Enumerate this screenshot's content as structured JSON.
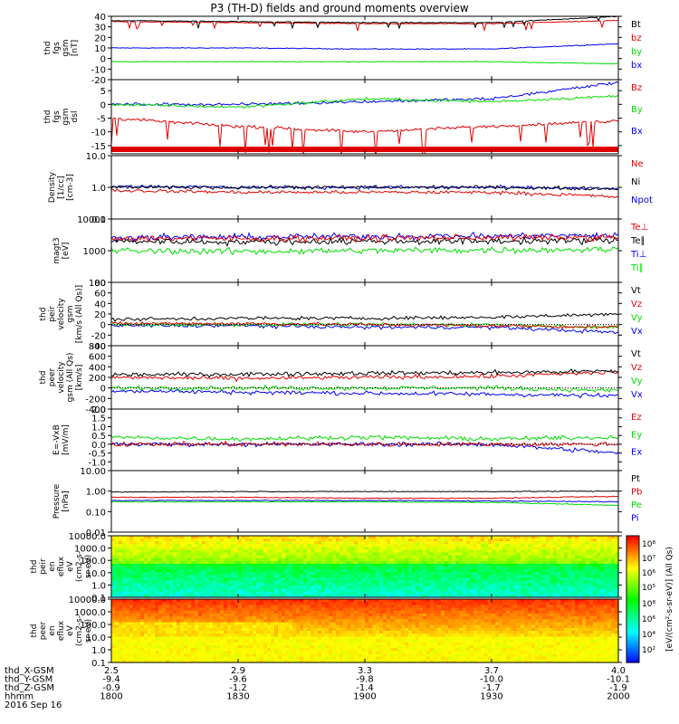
{
  "title": "P3 (TH-D) fields and ground moments overview",
  "colors": {
    "black": "#000000",
    "red": "#e00000",
    "green": "#00dd00",
    "blue": "#0000ee",
    "frame": "#000000"
  },
  "panels": [
    {
      "id": "fgs",
      "ylabel": [
        "thd",
        "fgs",
        "gsm",
        "[nT]"
      ],
      "ylim": [
        -20,
        40
      ],
      "log": false,
      "ticks": [
        "40",
        "30",
        "20",
        "10",
        "0",
        "-10",
        "-20"
      ],
      "tickvals": [
        40,
        30,
        20,
        10,
        0,
        -10,
        -20
      ],
      "legend": [
        {
          "t": "Bt",
          "c": "black"
        },
        {
          "t": "bz",
          "c": "red"
        },
        {
          "t": "by",
          "c": "green"
        },
        {
          "t": "bx",
          "c": "blue"
        }
      ]
    },
    {
      "id": "fgs_dsl",
      "ylabel": [
        "thd",
        "fgs",
        "gsm",
        "dsl"
      ],
      "ylim": [
        -18,
        9
      ],
      "log": false,
      "ticks": [
        "5",
        "0",
        "-5",
        "-10",
        "-15"
      ],
      "tickvals": [
        5,
        0,
        -5,
        -10,
        -15
      ],
      "legend": [
        {
          "t": "Bz",
          "c": "red"
        },
        {
          "t": "By",
          "c": "green"
        },
        {
          "t": "Bx",
          "c": "blue"
        }
      ]
    },
    {
      "id": "density",
      "ylabel": [
        "Density",
        "[1/cc]",
        "[cm-3]"
      ],
      "ylim": [
        0.1,
        10
      ],
      "log": true,
      "ticks": [
        "10.0",
        "1.0",
        "0.1"
      ],
      "tickvals": [
        10,
        1,
        0.1
      ],
      "legend": [
        {
          "t": "Ne",
          "c": "red"
        },
        {
          "t": "Ni",
          "c": "black"
        },
        {
          "t": "Npot",
          "c": "blue"
        }
      ]
    },
    {
      "id": "temp",
      "ylabel": [
        "magt3",
        "[eV]"
      ],
      "ylim": [
        100,
        10000
      ],
      "log": true,
      "ticks": [
        "10000",
        "1000",
        "100"
      ],
      "tickvals": [
        10000,
        1000,
        100
      ],
      "legend": [
        {
          "t": "Te⊥",
          "c": "red"
        },
        {
          "t": "Te∥",
          "c": "black"
        },
        {
          "t": "Ti⊥",
          "c": "blue"
        },
        {
          "t": "Ti∥",
          "c": "green"
        }
      ]
    },
    {
      "id": "vel_gsm",
      "ylabel": [
        "thd",
        "peir",
        "velocity",
        "gsm",
        "[km/s (All Qs)]"
      ],
      "ylim": [
        -40,
        80
      ],
      "log": false,
      "ticks": [
        "80",
        "60",
        "40",
        "20",
        "0",
        "-20",
        "-40"
      ],
      "tickvals": [
        80,
        60,
        40,
        20,
        0,
        -20,
        -40
      ],
      "legend": [
        {
          "t": "Vt",
          "c": "black"
        },
        {
          "t": "Vz",
          "c": "red"
        },
        {
          "t": "Vy",
          "c": "green"
        },
        {
          "t": "Vx",
          "c": "blue"
        }
      ]
    },
    {
      "id": "vel_peer",
      "ylabel": [
        "thd",
        "peer",
        "velocity",
        "gsm (All Qs)",
        "[km/s]"
      ],
      "ylim": [
        -400,
        800
      ],
      "log": false,
      "ticks": [
        "800",
        "600",
        "400",
        "200",
        "0",
        "-200",
        "-400"
      ],
      "tickvals": [
        800,
        600,
        400,
        200,
        0,
        -200,
        -400
      ],
      "legend": [
        {
          "t": "Vt",
          "c": "black"
        },
        {
          "t": "Vz",
          "c": "red"
        },
        {
          "t": "Vy",
          "c": "green"
        },
        {
          "t": "Vx",
          "c": "blue"
        }
      ]
    },
    {
      "id": "efield",
      "ylabel": [
        "E=-VxB",
        "[mV/m]"
      ],
      "ylim": [
        -1.5,
        2.0
      ],
      "log": false,
      "ticks": [
        "2.0",
        "1.5",
        "1.0",
        "0.5",
        "0.0",
        "-0.5",
        "-1.0"
      ],
      "tickvals": [
        2.0,
        1.5,
        1.0,
        0.5,
        0.0,
        -0.5,
        -1.0
      ],
      "legend": [
        {
          "t": "Ez",
          "c": "red"
        },
        {
          "t": "Ey",
          "c": "green"
        },
        {
          "t": "Ex",
          "c": "blue"
        }
      ]
    },
    {
      "id": "pressure",
      "ylabel": [
        "Pressure",
        "[nPa]"
      ],
      "ylim": [
        0.01,
        10
      ],
      "log": true,
      "ticks": [
        "10.00",
        "1.00",
        "0.10",
        "0.01"
      ],
      "tickvals": [
        10,
        1,
        0.1,
        0.01
      ],
      "legend": [
        {
          "t": "Pt",
          "c": "black"
        },
        {
          "t": "Pb",
          "c": "red"
        },
        {
          "t": "Pe",
          "c": "green"
        },
        {
          "t": "Pi",
          "c": "blue"
        }
      ]
    },
    {
      "id": "peir_spec",
      "ylabel": [
        "thd",
        "peir",
        "en",
        "eflux",
        "eV",
        "(cm2-s-",
        "sr-eV)"
      ],
      "ylim": [
        0.1,
        10000
      ],
      "log": true,
      "ticks": [
        "10000.0",
        "1000.0",
        "100.0",
        "10.0",
        "1.0",
        "0.1"
      ],
      "tickvals": [
        10000,
        1000,
        100,
        10,
        1,
        0.1
      ],
      "legend": []
    },
    {
      "id": "peer_spec",
      "ylabel": [
        "thd",
        "peer",
        "en",
        "eflux",
        "eV",
        "(cm2-s-",
        "sr-eV)"
      ],
      "ylim": [
        0.1,
        10000
      ],
      "log": true,
      "ticks": [
        "10000.0",
        "1000.0",
        "100.0",
        "10.0",
        "1.0",
        "0.1"
      ],
      "tickvals": [
        10000,
        1000,
        100,
        10,
        1,
        0.1
      ],
      "legend": []
    }
  ],
  "colorbar": {
    "label": "[eV/(cm²-s-sr-eV)] (All Qs)",
    "ion_ticks": [
      "10⁸",
      "10⁷",
      "10⁶",
      "10⁵"
    ],
    "ele_ticks": [
      "10⁸",
      "10⁶",
      "10⁴",
      "10²"
    ]
  },
  "xaxis": {
    "rows": [
      {
        "label": "thd_X-GSM",
        "vals": [
          "2.5",
          "2.9",
          "3.3",
          "3.7",
          "4.0"
        ]
      },
      {
        "label": "thd_Y-GSM",
        "vals": [
          "-9.4",
          "-9.6",
          "-9.8",
          "-10.0",
          "-10.1"
        ]
      },
      {
        "label": "thd_Z-GSM",
        "vals": [
          "-0.9",
          "-1.2",
          "-1.4",
          "-1.7",
          "-1.9"
        ]
      },
      {
        "label": "hhmm",
        "vals": [
          "1800",
          "1830",
          "1900",
          "1930",
          "2000"
        ]
      }
    ],
    "date": "2016 Sep 16"
  },
  "chart_data": [
    {
      "type": "line",
      "title": "P3 (TH-D) fields and ground moments overview",
      "ylabel": "thd fgs gsm [nT]",
      "ylim": [
        -20,
        40
      ],
      "x": [
        "1800",
        "1830",
        "1900",
        "1930",
        "2000"
      ],
      "series": [
        {
          "name": "Bt",
          "values": [
            36,
            35,
            34,
            34,
            40
          ]
        },
        {
          "name": "bz",
          "values": [
            35,
            34,
            33,
            33,
            36
          ]
        },
        {
          "name": "by",
          "values": [
            -3,
            -3,
            -3,
            -3,
            -5
          ]
        },
        {
          "name": "bx",
          "values": [
            10,
            10,
            9,
            9,
            14
          ]
        }
      ]
    },
    {
      "type": "line",
      "ylabel": "thd fgs gsm dsl",
      "ylim": [
        -18,
        9
      ],
      "x": [
        "1800",
        "1830",
        "1900",
        "1930",
        "2000"
      ],
      "series": [
        {
          "name": "Bz",
          "values": [
            -5,
            -8,
            -10,
            -8,
            -6
          ]
        },
        {
          "name": "By",
          "values": [
            0,
            -1,
            2,
            1,
            3
          ]
        },
        {
          "name": "Bx",
          "values": [
            0,
            0,
            1,
            2,
            8
          ]
        }
      ]
    },
    {
      "type": "line",
      "ylabel": "Density [1/cc] [cm-3]",
      "ylim": [
        0.1,
        10
      ],
      "x": [
        "1800",
        "1830",
        "1900",
        "1930",
        "2000"
      ],
      "series": [
        {
          "name": "Ne",
          "values": [
            0.8,
            0.7,
            0.7,
            0.7,
            0.5
          ]
        },
        {
          "name": "Ni",
          "values": [
            1.0,
            1.0,
            1.0,
            1.0,
            0.9
          ]
        },
        {
          "name": "Npot",
          "values": [
            1.1,
            1.0,
            1.0,
            1.0,
            0.9
          ]
        }
      ]
    },
    {
      "type": "line",
      "ylabel": "magt3 [eV]",
      "ylim": [
        100,
        10000
      ],
      "x": [
        "1800",
        "1830",
        "1900",
        "1930",
        "2000"
      ],
      "series": [
        {
          "name": "Te⊥",
          "values": [
            2500,
            2400,
            2500,
            2600,
            2600
          ]
        },
        {
          "name": "Te∥",
          "values": [
            2000,
            1900,
            2000,
            2000,
            2100
          ]
        },
        {
          "name": "Ti⊥",
          "values": [
            2600,
            2700,
            2800,
            2900,
            3000
          ]
        },
        {
          "name": "Ti∥",
          "values": [
            1000,
            950,
            1000,
            1050,
            1100
          ]
        }
      ]
    },
    {
      "type": "line",
      "ylabel": "thd peir velocity gsm [km/s (All Qs)]",
      "ylim": [
        -40,
        80
      ],
      "x": [
        "1800",
        "1830",
        "1900",
        "1930",
        "2000"
      ],
      "series": [
        {
          "name": "Vt",
          "values": [
            10,
            12,
            12,
            14,
            20
          ]
        },
        {
          "name": "Vz",
          "values": [
            2,
            2,
            0,
            -2,
            -5
          ]
        },
        {
          "name": "Vy",
          "values": [
            0,
            0,
            0,
            0,
            -5
          ]
        },
        {
          "name": "Vx",
          "values": [
            -2,
            -2,
            -5,
            -5,
            -15
          ]
        }
      ]
    },
    {
      "type": "line",
      "ylabel": "thd peer velocity gsm (All Qs) [km/s]",
      "ylim": [
        -400,
        800
      ],
      "x": [
        "1800",
        "1830",
        "1900",
        "1930",
        "2000"
      ],
      "series": [
        {
          "name": "Vt",
          "values": [
            250,
            260,
            280,
            290,
            320
          ]
        },
        {
          "name": "Vz",
          "values": [
            200,
            180,
            200,
            220,
            300
          ]
        },
        {
          "name": "Vy",
          "values": [
            0,
            0,
            0,
            0,
            -50
          ]
        },
        {
          "name": "Vx",
          "values": [
            -50,
            -80,
            -100,
            -120,
            -150
          ]
        }
      ]
    },
    {
      "type": "line",
      "ylabel": "E=-VxB [mV/m]",
      "ylim": [
        -1.5,
        2.0
      ],
      "x": [
        "1800",
        "1830",
        "1900",
        "1930",
        "2000"
      ],
      "series": [
        {
          "name": "Ez",
          "values": [
            0.0,
            0.0,
            0.0,
            0.0,
            0.0
          ]
        },
        {
          "name": "Ey",
          "values": [
            0.4,
            0.3,
            0.4,
            0.3,
            0.4
          ]
        },
        {
          "name": "Ex",
          "values": [
            0.0,
            0.0,
            0.0,
            0.0,
            -0.5
          ]
        }
      ]
    },
    {
      "type": "line",
      "ylabel": "Pressure [nPa]",
      "ylim": [
        0.01,
        10
      ],
      "x": [
        "1800",
        "1830",
        "1900",
        "1930",
        "2000"
      ],
      "series": [
        {
          "name": "Pt",
          "values": [
            0.9,
            0.95,
            0.95,
            0.95,
            1.0
          ]
        },
        {
          "name": "Pb",
          "values": [
            0.5,
            0.5,
            0.45,
            0.45,
            0.55
          ]
        },
        {
          "name": "Pe",
          "values": [
            0.3,
            0.3,
            0.3,
            0.28,
            0.2
          ]
        },
        {
          "name": "Pi",
          "values": [
            0.35,
            0.35,
            0.35,
            0.33,
            0.3
          ]
        }
      ]
    },
    {
      "type": "heatmap",
      "ylabel": "thd peir en eflux eV (cm2-s- sr-eV)",
      "ylim": [
        0.1,
        10000
      ]
    },
    {
      "type": "heatmap",
      "ylabel": "thd peer en eflux eV (cm2-s- sr-eV)",
      "ylim": [
        0.1,
        10000
      ]
    }
  ]
}
